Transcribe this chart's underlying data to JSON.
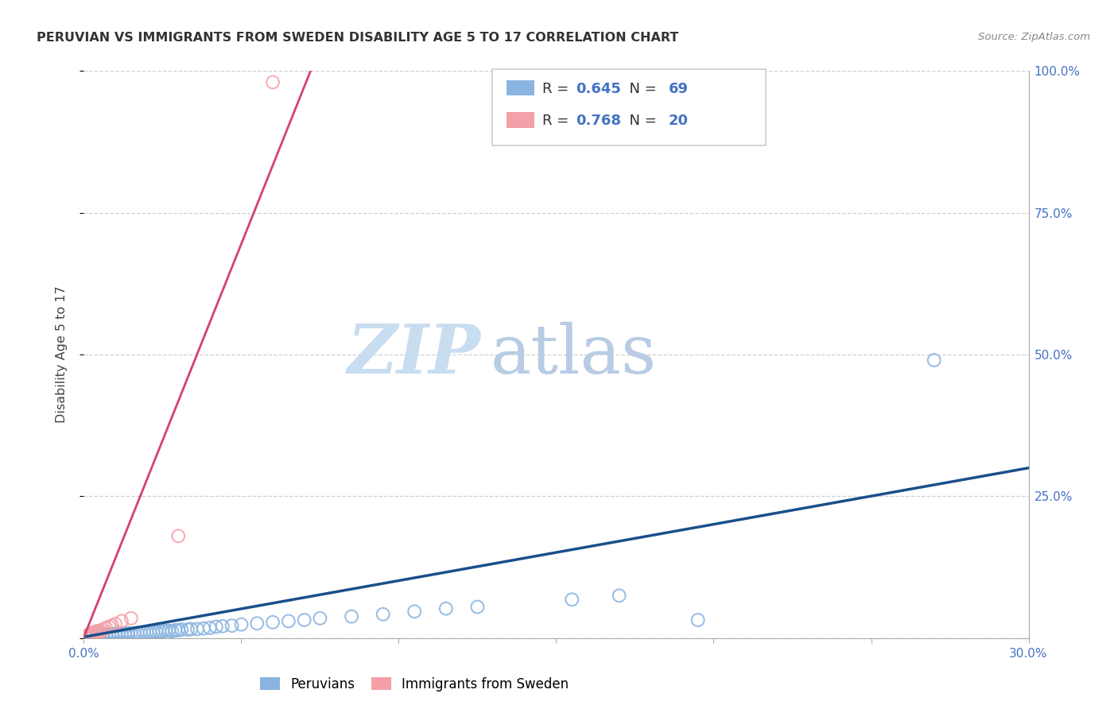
{
  "title": "PERUVIAN VS IMMIGRANTS FROM SWEDEN DISABILITY AGE 5 TO 17 CORRELATION CHART",
  "source": "Source: ZipAtlas.com",
  "ylabel": "Disability Age 5 to 17",
  "xlim": [
    0.0,
    0.3
  ],
  "ylim": [
    0.0,
    1.0
  ],
  "xticks": [
    0.0,
    0.05,
    0.1,
    0.15,
    0.2,
    0.25,
    0.3
  ],
  "xtick_labels": [
    "0.0%",
    "",
    "",
    "",
    "",
    "",
    "30.0%"
  ],
  "yticks": [
    0.0,
    0.25,
    0.5,
    0.75,
    1.0
  ],
  "ytick_labels": [
    "",
    "25.0%",
    "50.0%",
    "75.0%",
    "100.0%"
  ],
  "blue_color": "#8ab4e0",
  "pink_color": "#f4a0a8",
  "blue_line_color": "#1a4f8a",
  "pink_line_color": "#d44070",
  "tick_color": "#4472c4",
  "grid_color": "#d0d0d0",
  "blue_scatter_x": [
    0.0005,
    0.001,
    0.0015,
    0.002,
    0.0025,
    0.003,
    0.003,
    0.004,
    0.004,
    0.005,
    0.005,
    0.006,
    0.006,
    0.007,
    0.007,
    0.008,
    0.008,
    0.009,
    0.009,
    0.01,
    0.01,
    0.011,
    0.011,
    0.012,
    0.012,
    0.013,
    0.013,
    0.014,
    0.014,
    0.015,
    0.016,
    0.017,
    0.018,
    0.019,
    0.02,
    0.021,
    0.022,
    0.023,
    0.024,
    0.025,
    0.026,
    0.027,
    0.028,
    0.029,
    0.03,
    0.031,
    0.033,
    0.034,
    0.036,
    0.038,
    0.04,
    0.042,
    0.044,
    0.047,
    0.05,
    0.055,
    0.06,
    0.065,
    0.07,
    0.075,
    0.085,
    0.095,
    0.105,
    0.115,
    0.125,
    0.155,
    0.17,
    0.195,
    0.27
  ],
  "blue_scatter_y": [
    0.002,
    0.003,
    0.003,
    0.003,
    0.004,
    0.004,
    0.005,
    0.004,
    0.005,
    0.004,
    0.005,
    0.005,
    0.006,
    0.005,
    0.006,
    0.005,
    0.007,
    0.005,
    0.007,
    0.006,
    0.007,
    0.006,
    0.008,
    0.006,
    0.008,
    0.007,
    0.008,
    0.007,
    0.009,
    0.008,
    0.008,
    0.009,
    0.009,
    0.01,
    0.01,
    0.01,
    0.011,
    0.011,
    0.012,
    0.012,
    0.013,
    0.013,
    0.012,
    0.014,
    0.014,
    0.015,
    0.015,
    0.016,
    0.016,
    0.017,
    0.018,
    0.02,
    0.021,
    0.022,
    0.024,
    0.026,
    0.028,
    0.03,
    0.032,
    0.035,
    0.038,
    0.042,
    0.047,
    0.052,
    0.055,
    0.068,
    0.075,
    0.032,
    0.49
  ],
  "pink_scatter_x": [
    0.0005,
    0.001,
    0.0015,
    0.002,
    0.002,
    0.003,
    0.003,
    0.004,
    0.004,
    0.005,
    0.005,
    0.006,
    0.007,
    0.008,
    0.009,
    0.01,
    0.012,
    0.015,
    0.03,
    0.06
  ],
  "pink_scatter_y": [
    0.003,
    0.004,
    0.005,
    0.006,
    0.008,
    0.007,
    0.01,
    0.009,
    0.012,
    0.01,
    0.013,
    0.015,
    0.018,
    0.02,
    0.022,
    0.025,
    0.03,
    0.035,
    0.18,
    0.98
  ],
  "blue_line_x": [
    0.0,
    0.3
  ],
  "blue_line_y": [
    0.002,
    0.3
  ],
  "pink_line_x": [
    0.0,
    0.072
  ],
  "pink_line_y": [
    0.002,
    1.0
  ],
  "legend_R_blue": "0.645",
  "legend_N_blue": "69",
  "legend_R_pink": "0.768",
  "legend_N_pink": "20",
  "legend_label_blue": "Peruvians",
  "legend_label_pink": "Immigrants from Sweden",
  "watermark_part1": "ZIP",
  "watermark_part2": "atlas",
  "watermark_color1": "#c8ddf0",
  "watermark_color2": "#b8cce4"
}
